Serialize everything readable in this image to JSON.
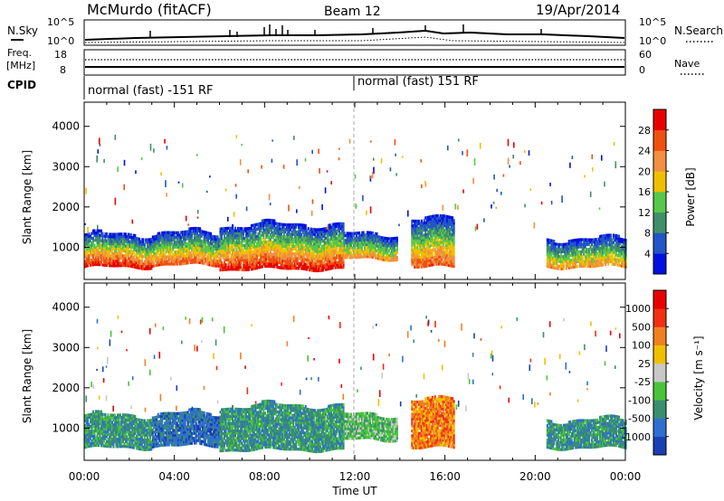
{
  "header": {
    "station": "McMurdo (fitACF)",
    "beam": "Beam 12",
    "date": "19/Apr/2014"
  },
  "noise_panel": {
    "left_label": "N.Sky",
    "left_ticks": [
      "10^5",
      "10^0"
    ],
    "right_label": "N.Search",
    "right_ticks": [
      "10^5",
      "10^0"
    ]
  },
  "freq_panel": {
    "left_label_1": "Freq.",
    "left_label_2": "[MHz]",
    "left_ticks": [
      "18",
      "8"
    ],
    "right_label": "Nave",
    "right_ticks": [
      "60",
      "0"
    ]
  },
  "cpid_panel": {
    "label": "CPID",
    "segments": [
      {
        "label": "normal (fast) -151 RF",
        "start_hour": 0
      },
      {
        "label": "normal (fast) 151 RF",
        "start_hour": 12
      }
    ]
  },
  "chart_data": [
    {
      "type": "heatmap",
      "panel": "power",
      "ylabel": "Slant Range [km]",
      "yticks": [
        "1000",
        "2000",
        "3000",
        "4000"
      ],
      "y_values": [
        1000,
        2000,
        3000,
        4000
      ],
      "ylim": [
        200,
        4600
      ],
      "xlim": [
        0,
        24
      ],
      "colorbar_label": "Power [dB]",
      "colorbar_ticks": [
        "4",
        "8",
        "12",
        "16",
        "20",
        "24",
        "28"
      ],
      "colorbar_colors": [
        "#0010e0",
        "#2255c8",
        "#3f8f6a",
        "#58c84a",
        "#f0c000",
        "#f09040",
        "#f05010",
        "#e80000"
      ],
      "echo_bands": [
        {
          "t0": 0.0,
          "t1": 3.0,
          "r_low": 500,
          "r_high": 1300,
          "level": 7
        },
        {
          "t0": 3.0,
          "t1": 6.0,
          "r_low": 550,
          "r_high": 1350,
          "level": 6
        },
        {
          "t0": 6.0,
          "t1": 11.5,
          "r_low": 450,
          "r_high": 1550,
          "level": 7
        },
        {
          "t0": 11.5,
          "t1": 13.9,
          "r_low": 700,
          "r_high": 1300,
          "level": 5
        },
        {
          "t0": 14.5,
          "t1": 16.4,
          "r_low": 500,
          "r_high": 1700,
          "level": 6
        },
        {
          "t0": 20.5,
          "t1": 24.0,
          "r_low": 500,
          "r_high": 1200,
          "level": 5
        }
      ]
    },
    {
      "type": "heatmap",
      "panel": "velocity",
      "ylabel": "Slant Range [km]",
      "yticks": [
        "1000",
        "2000",
        "3000",
        "4000"
      ],
      "y_values": [
        1000,
        2000,
        3000,
        4000
      ],
      "ylim": [
        200,
        4600
      ],
      "xlim": [
        0,
        24
      ],
      "xlabel": "Time UT",
      "xticks": [
        "00:00",
        "04:00",
        "08:00",
        "12:00",
        "16:00",
        "20:00",
        "00:00"
      ],
      "x_values": [
        0,
        4,
        8,
        12,
        16,
        20,
        24
      ],
      "colorbar_label": "Velocity [m s⁻¹]",
      "colorbar_ticks": [
        "1000",
        "500",
        "100",
        "25",
        "-25",
        "-100",
        "-500",
        "-1000"
      ],
      "colorbar_colors": [
        "#1a3fb5",
        "#2f6fcf",
        "#3a8f70",
        "#49c43a",
        "#c8c8c8",
        "#f0c000",
        "#f08020",
        "#f03010",
        "#e80000"
      ],
      "echo_bands": [
        {
          "t0": 0.0,
          "t1": 3.0,
          "r_low": 500,
          "r_high": 1300,
          "level": 2
        },
        {
          "t0": 3.0,
          "t1": 6.0,
          "r_low": 550,
          "r_high": 1350,
          "level": 1
        },
        {
          "t0": 6.0,
          "t1": 11.5,
          "r_low": 450,
          "r_high": 1550,
          "level": 2
        },
        {
          "t0": 11.5,
          "t1": 13.9,
          "r_low": 700,
          "r_high": 1300,
          "level": 3
        },
        {
          "t0": 14.5,
          "t1": 16.4,
          "r_low": 500,
          "r_high": 1700,
          "level": 6
        },
        {
          "t0": 20.5,
          "t1": 24.0,
          "r_low": 500,
          "r_high": 1200,
          "level": 2
        }
      ]
    }
  ]
}
